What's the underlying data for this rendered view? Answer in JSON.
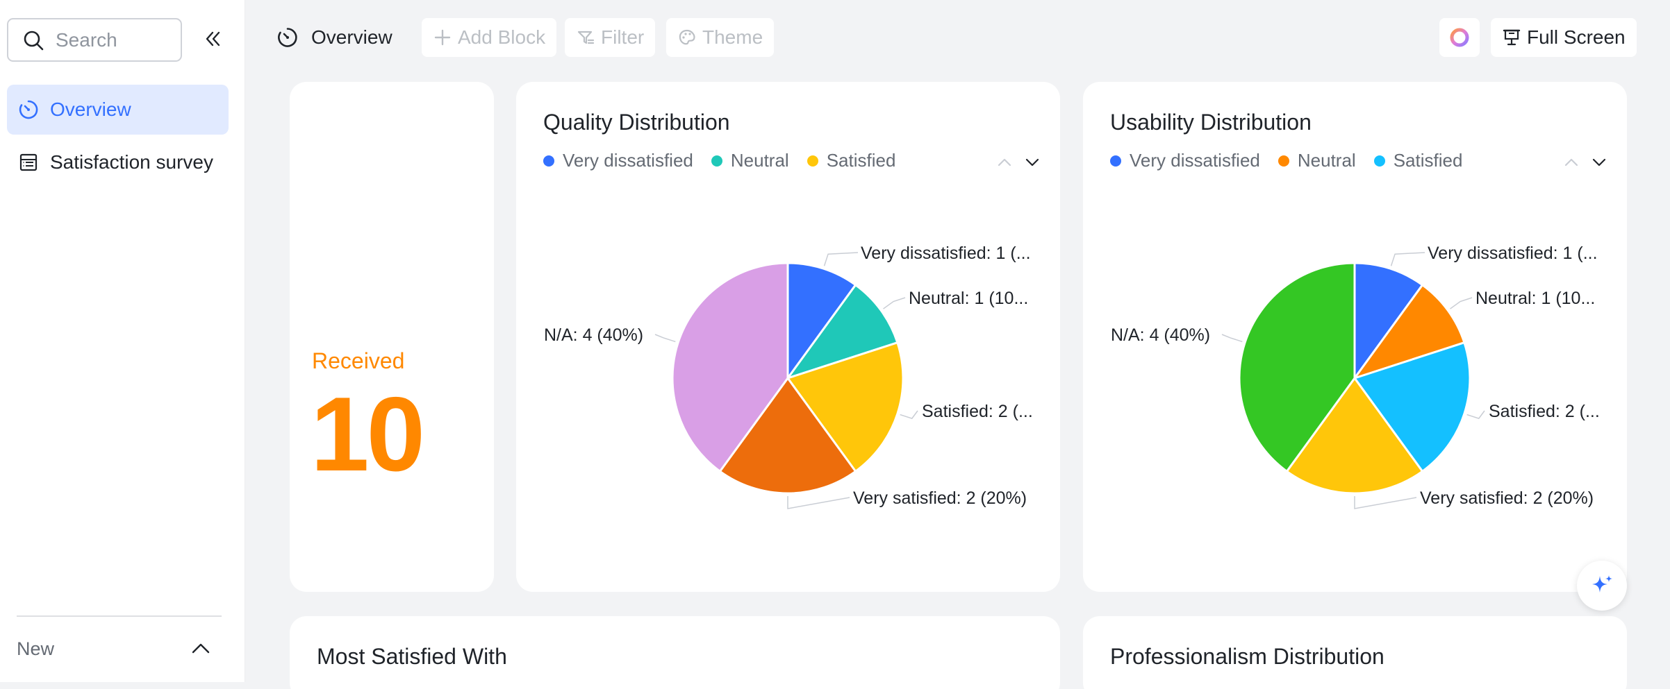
{
  "sidebar": {
    "search_placeholder": "Search",
    "items": [
      {
        "label": "Overview",
        "icon": "dashboard-icon",
        "active": true
      },
      {
        "label": "Satisfaction survey",
        "icon": "table-icon",
        "active": false
      }
    ],
    "new_label": "New"
  },
  "topbar": {
    "title": "Overview",
    "add_block": "Add Block",
    "filter": "Filter",
    "theme": "Theme",
    "full_screen": "Full Screen"
  },
  "received": {
    "label": "Received",
    "value": "10"
  },
  "charts": [
    {
      "title": "Quality Distribution",
      "legend": [
        "Very dissatisfied",
        "Neutral",
        "Satisfied"
      ],
      "legend_colors": [
        "#3370ff",
        "#1fc8b8",
        "#ffc60a"
      ],
      "labels": {
        "very_dissatisfied": "Very dissatisfied: 1 (...",
        "neutral": "Neutral: 1 (10...",
        "satisfied": "Satisfied: 2 (...",
        "very_satisfied": "Very satisfied: 2 (20%)",
        "na": "N/A: 4 (40%)"
      }
    },
    {
      "title": "Usability Distribution",
      "legend": [
        "Very dissatisfied",
        "Neutral",
        "Satisfied"
      ],
      "legend_colors": [
        "#3370ff",
        "#ff8800",
        "#14c0ff"
      ],
      "labels": {
        "very_dissatisfied": "Very dissatisfied: 1 (...",
        "neutral": "Neutral: 1 (10...",
        "satisfied": "Satisfied: 2 (...",
        "very_satisfied": "Very satisfied: 2 (20%)",
        "na": "N/A: 4 (40%)"
      }
    }
  ],
  "bottom": {
    "most_satisfied": "Most Satisfied With",
    "professionalism": "Professionalism Distribution"
  },
  "chart_data": [
    {
      "type": "pie",
      "title": "Quality Distribution",
      "categories": [
        "Very dissatisfied",
        "Neutral",
        "Satisfied",
        "Very satisfied",
        "N/A"
      ],
      "values": [
        1,
        1,
        2,
        2,
        4
      ],
      "colors": [
        "#3370ff",
        "#1fc8b8",
        "#ffc60a",
        "#ed6d0c",
        "#d99fe6"
      ]
    },
    {
      "type": "pie",
      "title": "Usability Distribution",
      "categories": [
        "Very dissatisfied",
        "Neutral",
        "Satisfied",
        "Very satisfied",
        "N/A"
      ],
      "values": [
        1,
        1,
        2,
        2,
        4
      ],
      "colors": [
        "#3370ff",
        "#ff8800",
        "#14c0ff",
        "#ffc60a",
        "#34c724"
      ]
    }
  ]
}
